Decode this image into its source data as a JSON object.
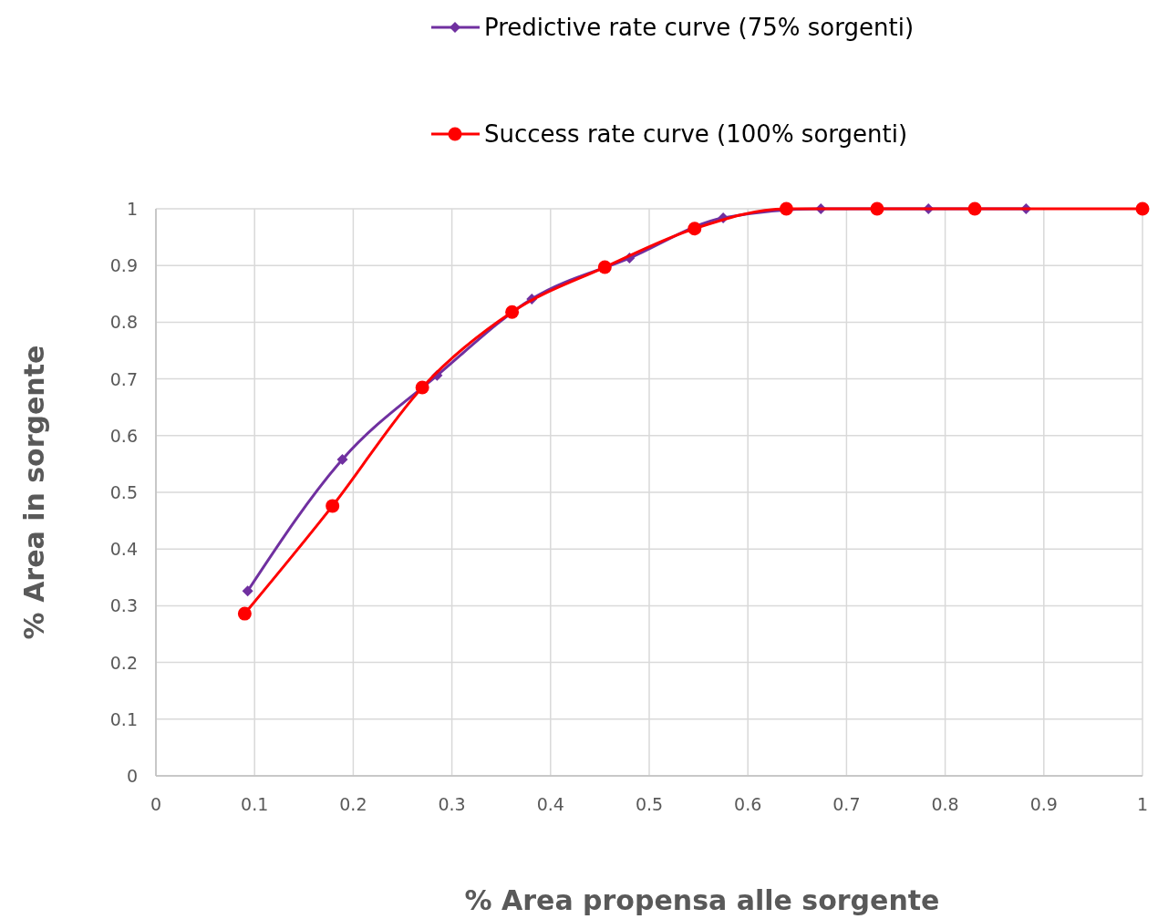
{
  "chart_data": {
    "type": "line",
    "xlabel": "% Area propensa alle sorgente",
    "ylabel": "% Area in sorgente",
    "xlim": [
      0,
      1
    ],
    "ylim": [
      0,
      1
    ],
    "xticks": [
      0,
      0.1,
      0.2,
      0.3,
      0.4,
      0.5,
      0.6,
      0.7,
      0.8,
      0.9,
      1
    ],
    "yticks": [
      0,
      0.1,
      0.2,
      0.3,
      0.4,
      0.5,
      0.6,
      0.7,
      0.8,
      0.9,
      1
    ],
    "grid": true,
    "legend": "top",
    "line_style": "solid",
    "series": [
      {
        "name": "Predictive rate curve (75% sorgenti)",
        "color": "#7030a0",
        "marker": "diamond",
        "x": [
          0.093,
          0.189,
          0.285,
          0.381,
          0.48,
          0.575,
          0.674,
          0.783,
          0.882
        ],
        "values": [
          0.326,
          0.558,
          0.706,
          0.841,
          0.913,
          0.984,
          1,
          1,
          1
        ]
      },
      {
        "name": "Success rate curve (100% sorgenti)",
        "color": "#ff0000",
        "marker": "circle",
        "x": [
          0.09,
          0.179,
          0.27,
          0.361,
          0.455,
          0.546,
          0.639,
          0.731,
          0.83,
          1
        ],
        "values": [
          0.286,
          0.476,
          0.685,
          0.818,
          0.897,
          0.965,
          1,
          1,
          1,
          1
        ]
      }
    ]
  }
}
